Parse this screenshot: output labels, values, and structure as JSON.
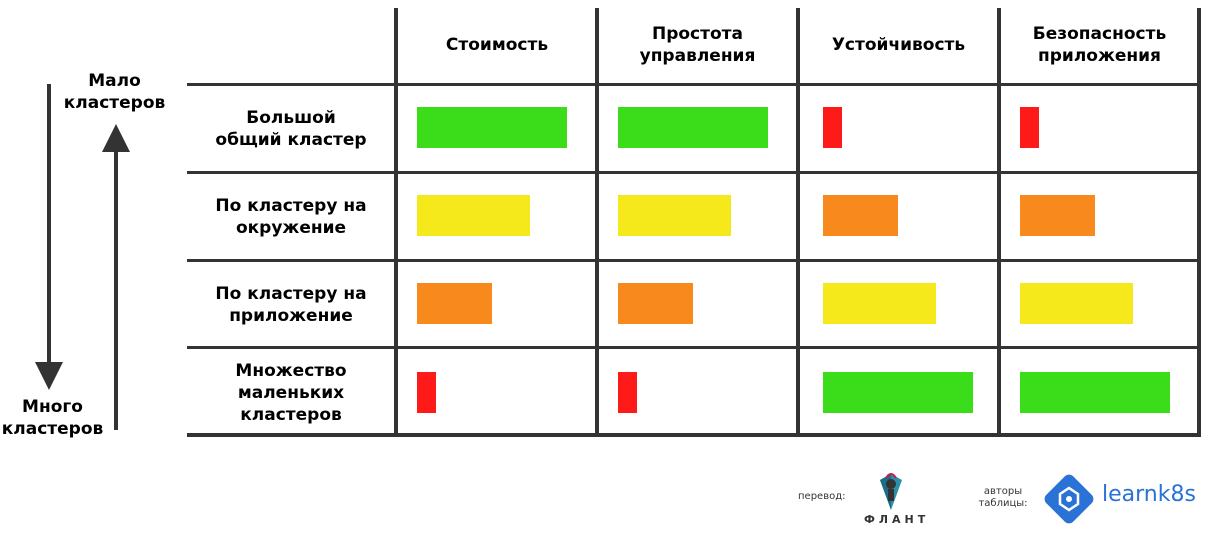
{
  "columns": [
    "Стоимость",
    "Простота\nуправления",
    "Устойчивость",
    "Безопасность\nприложения"
  ],
  "rows": [
    "Большой\nобщий кластер",
    "По кластеру на\nокружение",
    "По кластеру на\nприложение",
    "Множество\nмаленьких\nкластеров"
  ],
  "axis": {
    "top_label": "Мало\nкластеров",
    "bottom_label": "Много\nкластеров"
  },
  "ratings": [
    [
      4,
      4,
      1,
      1
    ],
    [
      3,
      3,
      2,
      2
    ],
    [
      2,
      2,
      3,
      3
    ],
    [
      1,
      1,
      4,
      4
    ]
  ],
  "rating_colors": {
    "1": "#ff1a1a",
    "2": "#f7891d",
    "3": "#f5e81b",
    "4": "#3bdc1a"
  },
  "credits": {
    "translation_label": "перевод:",
    "translation_brand": "ФЛАНТ",
    "authors_label": "авторы\nтаблицы:",
    "authors_brand": "learnk8s"
  }
}
